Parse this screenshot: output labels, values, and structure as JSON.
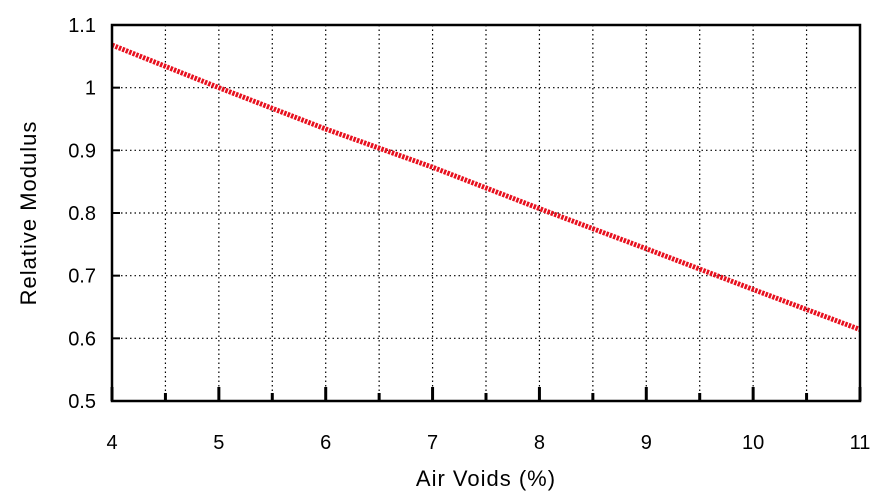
{
  "chart_data": {
    "type": "line",
    "title": "",
    "xlabel": "Air Voids (%)",
    "ylabel": "Relative Modulus",
    "xlim": [
      4,
      11
    ],
    "ylim": [
      0.5,
      1.1
    ],
    "x_ticks": [
      "4",
      "5",
      "6",
      "7",
      "8",
      "9",
      "10",
      "11"
    ],
    "y_ticks": [
      "0.5",
      "0.6",
      "0.7",
      "0.8",
      "0.9",
      "1",
      "1.1"
    ],
    "grid": true,
    "series": [
      {
        "color": "#e8101e",
        "x": [
          4,
          5,
          6,
          7,
          8,
          9,
          10,
          11
        ],
        "y": [
          1.068,
          1.0,
          0.934,
          0.873,
          0.807,
          0.743,
          0.678,
          0.614
        ]
      }
    ]
  }
}
